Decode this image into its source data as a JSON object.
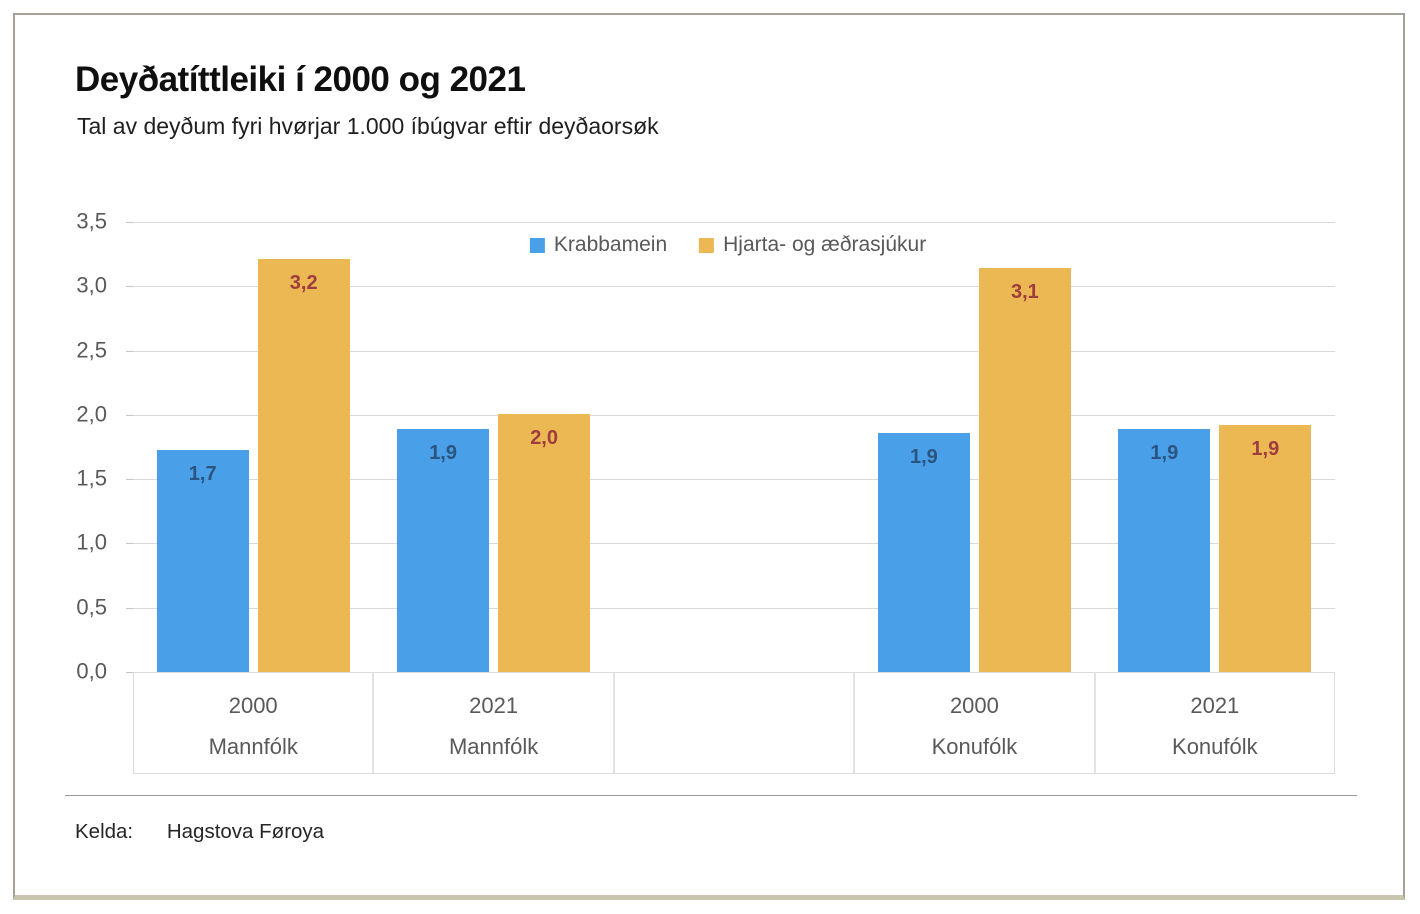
{
  "chart_data": {
    "type": "bar",
    "title": "Deyðatíttleiki í 2000 og 2021",
    "subtitle": "Tal av deyðum fyri hvørjar 1.000 íbúgvar eftir deyðaorsøk",
    "categories": [
      {
        "year": "2000",
        "group": "Mannfólk"
      },
      {
        "year": "2021",
        "group": "Mannfólk"
      },
      {
        "year": "2000",
        "group": "Konufólk"
      },
      {
        "year": "2021",
        "group": "Konufólk"
      }
    ],
    "series": [
      {
        "name": "Krabbamein",
        "color": "#4aa0e8",
        "label_color": "#2b5481",
        "values": [
          1.73,
          1.89,
          1.86,
          1.89
        ],
        "labels": [
          "1,7",
          "1,9",
          "1,9",
          "1,9"
        ]
      },
      {
        "name": "Hjarta- og æðrasjúkur",
        "color": "#ebb853",
        "label_color": "#9f3d3e",
        "values": [
          3.21,
          2.01,
          3.14,
          1.92
        ],
        "labels": [
          "3,2",
          "2,0",
          "3,1",
          "1,9"
        ]
      }
    ],
    "y_axis": {
      "min": 0,
      "max": 3.5,
      "step": 0.5,
      "tick_labels": [
        "0,0",
        "0,5",
        "1,0",
        "1,5",
        "2,0",
        "2,5",
        "3,0",
        "3,5"
      ]
    },
    "legend_position": "top-center",
    "grid": true,
    "layout": {
      "slot_count": 5,
      "group_slots": [
        0,
        1,
        3,
        4
      ]
    }
  },
  "footer": {
    "source_label": "Kelda:",
    "source": "Hagstova Føroya"
  }
}
